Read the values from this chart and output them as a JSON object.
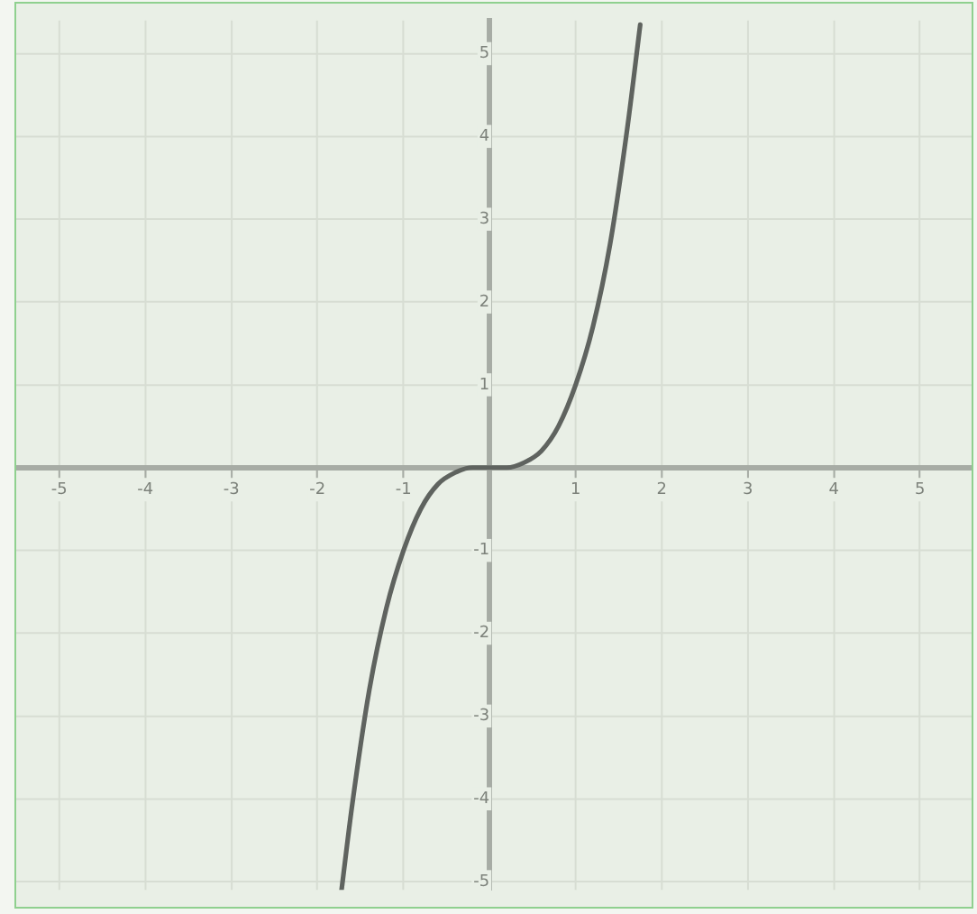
{
  "chart_data": {
    "type": "line",
    "x": [
      -1.72,
      -1.6,
      -1.4,
      -1.2,
      -1.0,
      -0.8,
      -0.6,
      -0.4,
      -0.2,
      0,
      0.2,
      0.4,
      0.6,
      0.8,
      1.0,
      1.2,
      1.4,
      1.6,
      1.75
    ],
    "series": [
      {
        "color": "#5f635f",
        "values": [
          -5.1,
          -4.1,
          -2.7,
          -1.7,
          -1.0,
          -0.5,
          -0.2,
          -0.06,
          0,
          0,
          0,
          0.06,
          0.2,
          0.5,
          1.0,
          1.7,
          2.7,
          4.1,
          5.35
        ]
      }
    ],
    "xlim": [
      -5.5,
      5.6
    ],
    "ylim": [
      -5.1,
      5.4
    ],
    "xticks": [
      -5,
      -4,
      -3,
      -2,
      -1,
      1,
      2,
      3,
      4,
      5
    ],
    "yticks": [
      -5,
      -4,
      -3,
      -2,
      -1,
      1,
      2,
      3,
      4,
      5
    ],
    "grid": true,
    "marker": "none",
    "line_style": "solid"
  }
}
